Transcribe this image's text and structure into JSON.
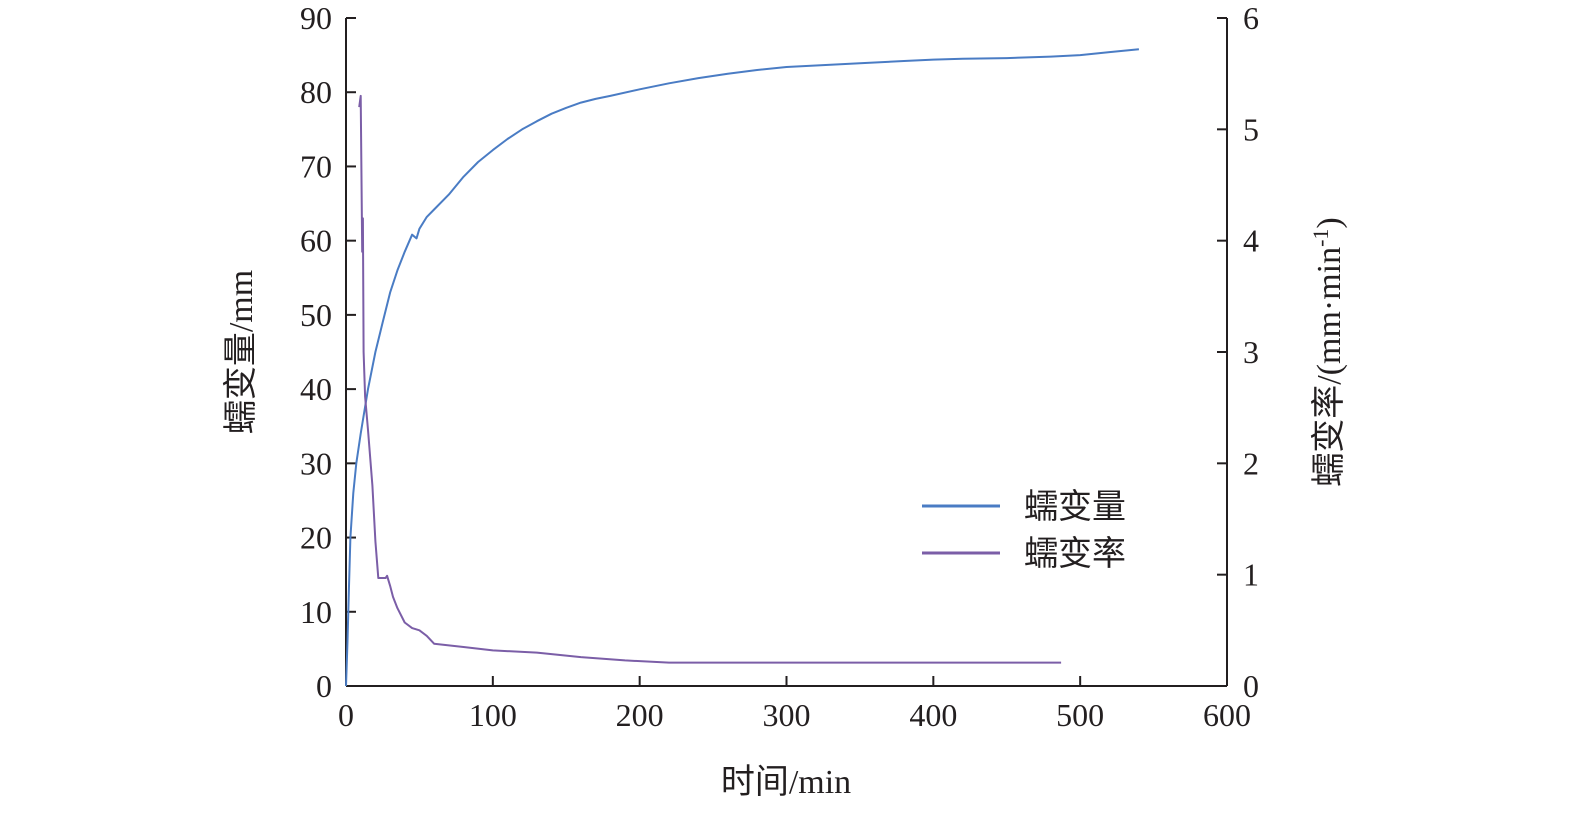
{
  "chart_data": {
    "type": "line",
    "xlabel": "时间/min",
    "ylabel_left": "蠕变量/mm",
    "ylabel_right": "蠕变率/(mm·min",
    "ylabel_right_sup": "-1",
    "ylabel_right_close": ")",
    "xlim": [
      0,
      600
    ],
    "ylim_left": [
      0,
      90
    ],
    "ylim_right": [
      0,
      6
    ],
    "x_ticks": [
      "0",
      "100",
      "200",
      "300",
      "400",
      "500",
      "600"
    ],
    "y_left_ticks": [
      "0",
      "10",
      "20",
      "30",
      "40",
      "50",
      "60",
      "70",
      "80",
      "90"
    ],
    "y_right_ticks": [
      "0",
      "1",
      "2",
      "3",
      "4",
      "5",
      "6"
    ],
    "grid": false,
    "legend_position": "bottom-right",
    "series": [
      {
        "name": "蠕变量",
        "axis": "left",
        "color": "#4a7cc4",
        "x": [
          0,
          1,
          2,
          3,
          5,
          7,
          10,
          15,
          20,
          25,
          30,
          35,
          40,
          45,
          48,
          50,
          55,
          60,
          70,
          80,
          90,
          100,
          110,
          120,
          130,
          140,
          150,
          160,
          170,
          180,
          200,
          220,
          240,
          260,
          280,
          300,
          320,
          350,
          380,
          400,
          420,
          450,
          480,
          500,
          520,
          540
        ],
        "values": [
          0,
          6,
          13,
          20,
          26,
          30,
          34,
          40,
          45,
          49,
          53,
          56,
          58.5,
          60.8,
          60.3,
          61.6,
          63.2,
          64.2,
          66.2,
          68.6,
          70.6,
          72.2,
          73.7,
          75.0,
          76.1,
          77.1,
          77.9,
          78.6,
          79.1,
          79.5,
          80.4,
          81.2,
          81.9,
          82.5,
          83.0,
          83.4,
          83.6,
          83.9,
          84.2,
          84.4,
          84.5,
          84.6,
          84.8,
          85.0,
          85.4,
          85.8
        ]
      },
      {
        "name": "蠕变率",
        "axis": "right",
        "color": "#7b5ea7",
        "x": [
          9,
          10,
          11,
          11.5,
          12,
          13,
          15,
          18,
          20,
          22,
          24,
          25,
          27,
          28,
          30,
          32,
          35,
          40,
          45,
          50,
          55,
          60,
          80,
          100,
          130,
          160,
          190,
          220,
          300,
          400,
          487
        ],
        "values": [
          5.2,
          5.3,
          3.9,
          4.2,
          3.0,
          2.6,
          2.3,
          1.8,
          1.3,
          0.97,
          0.97,
          0.97,
          0.97,
          0.99,
          0.9,
          0.8,
          0.7,
          0.57,
          0.52,
          0.5,
          0.45,
          0.38,
          0.35,
          0.32,
          0.3,
          0.26,
          0.23,
          0.21,
          0.21,
          0.21,
          0.21
        ]
      }
    ]
  }
}
